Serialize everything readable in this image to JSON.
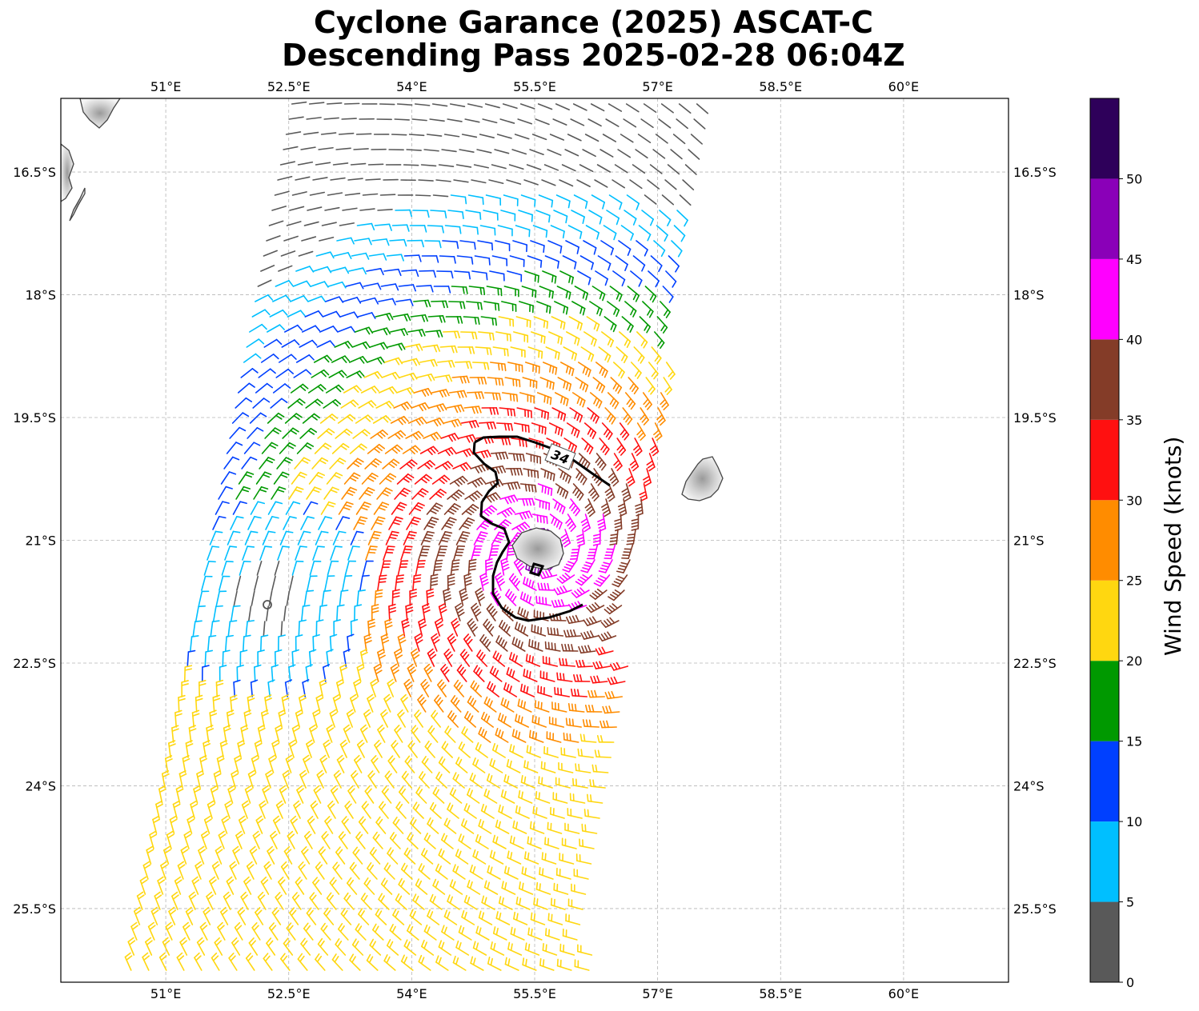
{
  "title": {
    "line1": "Cyclone Garance (2025) ASCAT-C",
    "line2": "Descending Pass 2025-02-28 06:04Z"
  },
  "map": {
    "lon_ticks": [
      "51°E",
      "52.5°E",
      "54°E",
      "55.5°E",
      "57°E",
      "58.5°E",
      "60°E"
    ],
    "lat_ticks": [
      "16.5°S",
      "18°S",
      "19.5°S",
      "21°S",
      "22.5°S",
      "24°S",
      "25.5°S"
    ],
    "lon_range": [
      49.72,
      61.28
    ],
    "lat_range": [
      -15.6,
      -26.4
    ],
    "gridlines": true,
    "contour_label": "34",
    "features": [
      "madagascar-coast",
      "reunion-island",
      "mauritius-island",
      "storm-center-marker"
    ]
  },
  "colorbar": {
    "label": "Wind Speed (knots)",
    "ticks": [
      "0",
      "5",
      "10",
      "15",
      "20",
      "25",
      "30",
      "35",
      "40",
      "45",
      "50"
    ],
    "bins": [
      {
        "from": 0,
        "to": 5,
        "color": "#595959"
      },
      {
        "from": 5,
        "to": 10,
        "color": "#00bfff"
      },
      {
        "from": 10,
        "to": 15,
        "color": "#0040ff"
      },
      {
        "from": 15,
        "to": 20,
        "color": "#009900"
      },
      {
        "from": 20,
        "to": 25,
        "color": "#ffd710"
      },
      {
        "from": 25,
        "to": 30,
        "color": "#ff8c00"
      },
      {
        "from": 30,
        "to": 35,
        "color": "#ff1010"
      },
      {
        "from": 35,
        "to": 40,
        "color": "#843c28"
      },
      {
        "from": 40,
        "to": 45,
        "color": "#ff00ff"
      },
      {
        "from": 45,
        "to": 50,
        "color": "#8a00b8"
      },
      {
        "from": 50,
        "to": 55,
        "color": "#2e005a"
      }
    ]
  }
}
